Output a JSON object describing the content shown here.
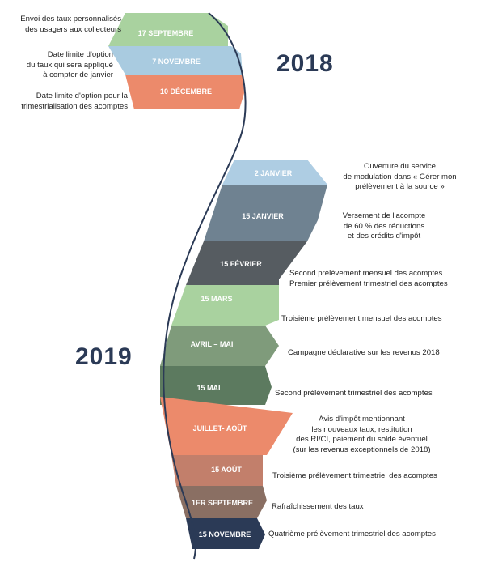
{
  "years": {
    "y2018": "2018",
    "y2019": "2019"
  },
  "events_2018": [
    {
      "date": "17 SEPTEMBRE",
      "desc": "Envoi des taux personnalisés\ndes usagers aux collecteurs",
      "color": "#a9d29f"
    },
    {
      "date": "7 NOVEMBRE",
      "desc": "Date limite d'option\ndu taux qui sera appliqué\nà compter de janvier",
      "color": "#a9cbe0"
    },
    {
      "date": "10 DÉCEMBRE",
      "desc": "Date limite d'option pour la\ntrimestrialisation des acomptes",
      "color": "#ec8a6b"
    }
  ],
  "events_2019": [
    {
      "date": "2 JANVIER",
      "desc": "Ouverture du service\nde modulation dans « Gérer mon\nprélèvement à la source »",
      "color": "#aecde3"
    },
    {
      "date": "15 JANVIER",
      "desc": "Versement de l'acompte\nde 60 % des réductions\net des crédits d'impôt",
      "color": "#6f8291"
    },
    {
      "date": "15 FÉVRIER",
      "desc": "Second prélèvement mensuel des acomptes\nPremier prélèvement trimestriel des acomptes",
      "color": "#565c61"
    },
    {
      "date": "15 MARS",
      "desc": "Troisième prélèvement mensuel des acomptes",
      "color": "#a9d29f"
    },
    {
      "date": "AVRIL – MAI",
      "desc": "Campagne déclarative sur les revenus 2018",
      "color": "#7f9b7b"
    },
    {
      "date": "15 MAI",
      "desc": "Second prélèvement trimestriel des acomptes",
      "color": "#5c7a5f"
    },
    {
      "date": "JUILLET- AOÛT",
      "desc": "Avis d'impôt mentionnant\nles nouveaux taux, restitution\ndes RI/CI, paiement du solde éventuel\n(sur les revenus exceptionnels de 2018)",
      "color": "#ec8a6b"
    },
    {
      "date": "15 AOÛT",
      "desc": "Troisième prélèvement trimestriel des acomptes",
      "color": "#c27f6b"
    },
    {
      "date": "1ER SEPTEMBRE",
      "desc": "Rafraîchissement des taux",
      "color": "#8a6f63"
    },
    {
      "date": "15 NOVEMBRE",
      "desc": "Quatrième prélèvement trimestriel des acomptes",
      "color": "#2b3a56"
    }
  ],
  "colors": {
    "year_text": "#2b3a56",
    "curve": "#2b3a56"
  }
}
